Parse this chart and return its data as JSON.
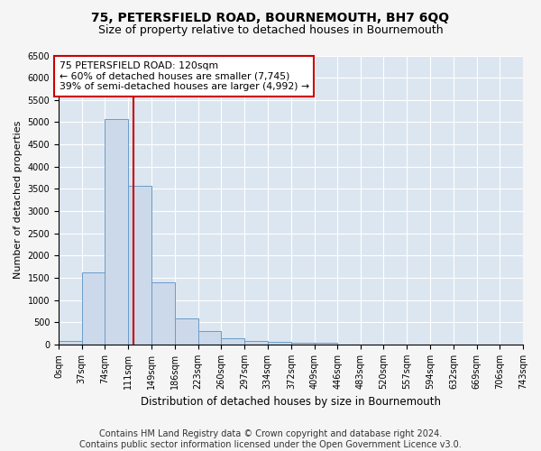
{
  "title": "75, PETERSFIELD ROAD, BOURNEMOUTH, BH7 6QQ",
  "subtitle": "Size of property relative to detached houses in Bournemouth",
  "xlabel": "Distribution of detached houses by size in Bournemouth",
  "ylabel": "Number of detached properties",
  "bar_values": [
    75,
    1625,
    5075,
    3575,
    1400,
    590,
    300,
    140,
    90,
    55,
    40,
    40,
    0,
    0,
    0,
    0,
    0,
    0,
    0,
    0
  ],
  "bin_edges": [
    0,
    37,
    74,
    111,
    149,
    186,
    223,
    260,
    297,
    334,
    372,
    409,
    446,
    483,
    520,
    557,
    594,
    632,
    669,
    706,
    743
  ],
  "tick_labels": [
    "0sqm",
    "37sqm",
    "74sqm",
    "111sqm",
    "149sqm",
    "186sqm",
    "223sqm",
    "260sqm",
    "297sqm",
    "334sqm",
    "372sqm",
    "409sqm",
    "446sqm",
    "483sqm",
    "520sqm",
    "557sqm",
    "594sqm",
    "632sqm",
    "669sqm",
    "706sqm",
    "743sqm"
  ],
  "bar_color": "#ccd9ea",
  "bar_edge_color": "#6a9cc9",
  "vline_x": 120,
  "vline_color": "#cc0000",
  "annotation_text": "75 PETERSFIELD ROAD: 120sqm\n← 60% of detached houses are smaller (7,745)\n39% of semi-detached houses are larger (4,992) →",
  "annotation_box_color": "white",
  "annotation_box_edge_color": "#cc0000",
  "ylim": [
    0,
    6500
  ],
  "yticks": [
    0,
    500,
    1000,
    1500,
    2000,
    2500,
    3000,
    3500,
    4000,
    4500,
    5000,
    5500,
    6000,
    6500
  ],
  "background_color": "#f5f5f5",
  "plot_bg_color": "#dce6f0",
  "grid_color": "white",
  "footer_line1": "Contains HM Land Registry data © Crown copyright and database right 2024.",
  "footer_line2": "Contains public sector information licensed under the Open Government Licence v3.0.",
  "title_fontsize": 10,
  "subtitle_fontsize": 9,
  "annotation_fontsize": 7.8,
  "ylabel_fontsize": 8,
  "xlabel_fontsize": 8.5,
  "footer_fontsize": 7,
  "tick_fontsize": 7
}
